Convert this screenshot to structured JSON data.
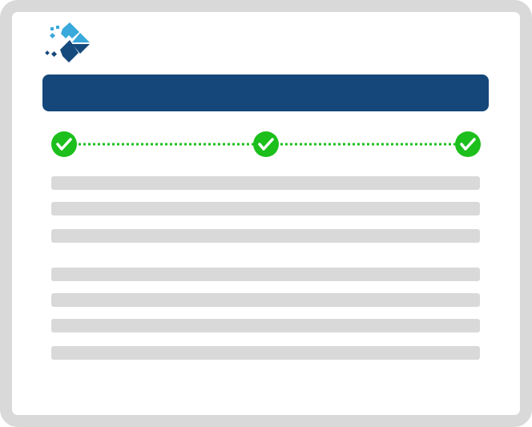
{
  "colors": {
    "frame": "#d9d9d9",
    "header": "#15477a",
    "step_complete": "#1cbf1c",
    "placeholder": "#d9d9d9",
    "logo_light": "#39a9db",
    "logo_dark": "#154a7c"
  },
  "logo_icon": "diamond-pixel-logo",
  "steps": [
    {
      "status": "complete",
      "icon": "check-icon"
    },
    {
      "status": "complete",
      "icon": "check-icon"
    },
    {
      "status": "complete",
      "icon": "check-icon"
    }
  ],
  "content_placeholder_lines": 7
}
